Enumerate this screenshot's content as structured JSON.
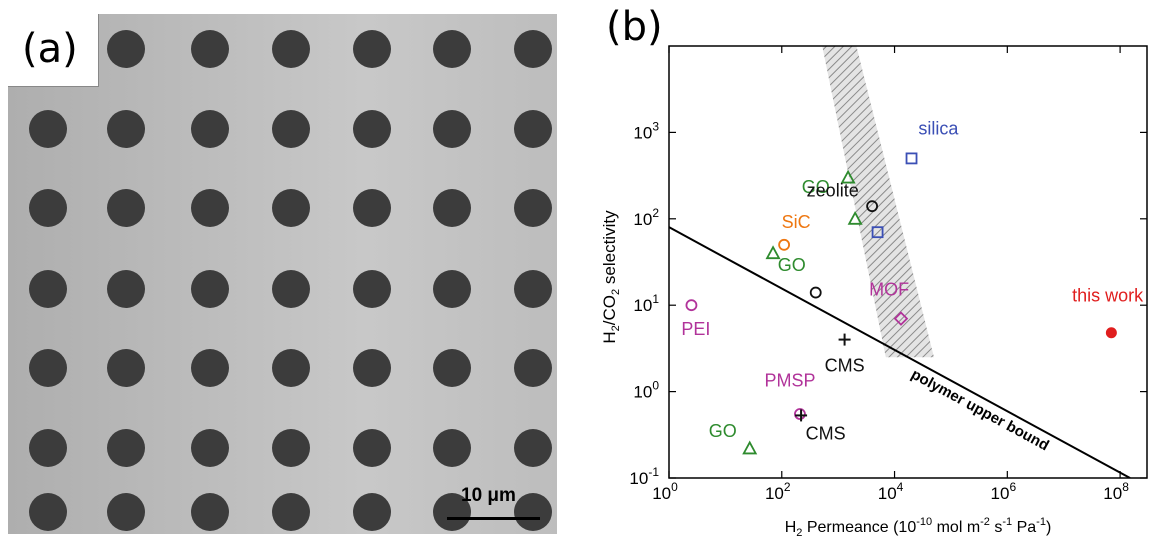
{
  "panel_a": {
    "label": "(a)",
    "scale_bar_label": "10 μm"
  },
  "panel_b": {
    "label": "(b)"
  },
  "chart_data": {
    "type": "scatter",
    "xlabel": "H2 Permeance (10-10 mol m-2 s-1 Pa-1)",
    "ylabel": "H2/CO2 selectivity",
    "x_scale": "log",
    "y_scale": "log",
    "xlim": [
      1,
      300000000
    ],
    "ylim": [
      0.1,
      10000
    ],
    "x_ticks": [
      {
        "value": 1,
        "base": "10",
        "exp": "0"
      },
      {
        "value": 100,
        "base": "10",
        "exp": "2"
      },
      {
        "value": 10000,
        "base": "10",
        "exp": "4"
      },
      {
        "value": 1000000,
        "base": "10",
        "exp": "6"
      },
      {
        "value": 100000000,
        "base": "10",
        "exp": "8"
      }
    ],
    "y_ticks": [
      {
        "value": 0.1,
        "base": "10",
        "exp": "-1"
      },
      {
        "value": 1,
        "base": "10",
        "exp": "0"
      },
      {
        "value": 10,
        "base": "10",
        "exp": "1"
      },
      {
        "value": 100,
        "base": "10",
        "exp": "2"
      },
      {
        "value": 1000,
        "base": "10",
        "exp": "3"
      }
    ],
    "grid": false,
    "colors": {
      "GO": "#2e8b2e",
      "silica": "#3b4fb5",
      "zeolite": "#111111",
      "SiC": "#ee7711",
      "MOF": "#b1339a",
      "PEI": "#b1339a",
      "PMSP": "#b1339a",
      "CMS": "#111111",
      "this_work": "#e01e1e",
      "upper_bound": "#000000",
      "band": "#9a9a9a"
    },
    "upper_bound_line": {
      "label": "polymer upper bound",
      "points": [
        [
          1,
          80
        ],
        [
          150000000,
          0.1
        ]
      ]
    },
    "shaded_band": {
      "top_x": [
        500,
        2000
      ],
      "bottom_x": [
        7000,
        50000
      ],
      "y_range": [
        2.5,
        10000
      ]
    },
    "points": [
      {
        "material": "GO",
        "marker": "triangle",
        "x": 1500,
        "y": 300
      },
      {
        "material": "GO",
        "marker": "triangle",
        "x": 2000,
        "y": 100
      },
      {
        "material": "GO",
        "marker": "triangle",
        "x": 70,
        "y": 40
      },
      {
        "material": "GO",
        "marker": "triangle",
        "x": 27,
        "y": 0.22
      },
      {
        "material": "silica",
        "marker": "square",
        "x": 20000,
        "y": 500
      },
      {
        "material": "silica",
        "marker": "square",
        "x": 5000,
        "y": 70
      },
      {
        "material": "zeolite",
        "marker": "circle",
        "x": 4000,
        "y": 140
      },
      {
        "material": "zeolite",
        "marker": "circle",
        "x": 400,
        "y": 14
      },
      {
        "material": "SiC",
        "marker": "circle",
        "x": 110,
        "y": 50
      },
      {
        "material": "MOF",
        "marker": "diamond",
        "x": 13000,
        "y": 7
      },
      {
        "material": "PEI",
        "marker": "circle",
        "x": 2.5,
        "y": 10
      },
      {
        "material": "PMSP",
        "marker": "circle",
        "x": 210,
        "y": 0.55
      },
      {
        "material": "CMS",
        "marker": "plus",
        "x": 220,
        "y": 0.53
      },
      {
        "material": "CMS",
        "marker": "plus",
        "x": 1300,
        "y": 4
      },
      {
        "material": "this work",
        "marker": "filled-circle",
        "x": 70000000,
        "y": 4.8
      }
    ],
    "annotations": [
      {
        "text": "GO",
        "material": "GO",
        "x": 400,
        "y": 200
      },
      {
        "text": "GO",
        "material": "GO",
        "x": 150,
        "y": 25
      },
      {
        "text": "GO",
        "material": "GO",
        "x": 9,
        "y": 0.3
      },
      {
        "text": "silica",
        "material": "silica",
        "x": 60000,
        "y": 950
      },
      {
        "text": "zeolite",
        "material": "zeolite",
        "x": 800,
        "y": 180
      },
      {
        "text": "SiC",
        "material": "SiC",
        "x": 180,
        "y": 78
      },
      {
        "text": "MOF",
        "material": "MOF",
        "x": 8000,
        "y": 13
      },
      {
        "text": "PEI",
        "material": "PEI",
        "x": 3,
        "y": 4.5
      },
      {
        "text": "PMSP",
        "material": "PMSP",
        "x": 140,
        "y": 1.15
      },
      {
        "text": "CMS",
        "material": "CMS",
        "x": 1300,
        "y": 1.7
      },
      {
        "text": "CMS",
        "material": "CMS",
        "x": 600,
        "y": 0.28
      },
      {
        "text": "this work",
        "material": "this_work",
        "x": 60000000,
        "y": 11
      }
    ]
  }
}
